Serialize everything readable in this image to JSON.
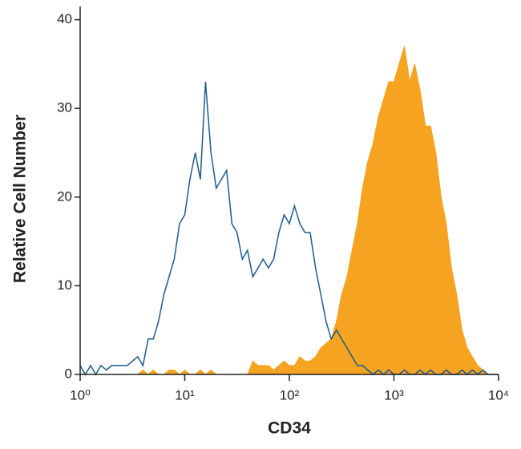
{
  "chart_data": {
    "type": "line",
    "xlabel": "CD34",
    "ylabel": "Relative Cell Number",
    "xscale": "log",
    "xlim": [
      1,
      10000
    ],
    "ylim": [
      0,
      41.5
    ],
    "xticks": [
      {
        "value": 1,
        "label": "10⁰"
      },
      {
        "value": 10,
        "label": "10¹"
      },
      {
        "value": 100,
        "label": "10²"
      },
      {
        "value": 1000,
        "label": "10³"
      },
      {
        "value": 10000,
        "label": "10⁴"
      }
    ],
    "yticks": [
      0,
      10,
      20,
      30,
      40
    ],
    "x": [
      1,
      1.12,
      1.26,
      1.41,
      1.58,
      1.78,
      2,
      2.24,
      2.51,
      2.82,
      3.16,
      3.55,
      3.98,
      4.47,
      5.01,
      5.62,
      6.31,
      7.08,
      7.94,
      8.91,
      10,
      11.2,
      12.6,
      14.1,
      15.8,
      17.8,
      20,
      22.4,
      25.1,
      28.2,
      31.6,
      35.5,
      39.8,
      44.7,
      50.1,
      56.2,
      63.1,
      70.8,
      79.4,
      89.1,
      100,
      112,
      126,
      141,
      158,
      178,
      200,
      224,
      251,
      282,
      316,
      355,
      398,
      447,
      501,
      562,
      631,
      708,
      794,
      891,
      1000,
      1120,
      1260,
      1410,
      1580,
      1780,
      2000,
      2240,
      2510,
      2820,
      3160,
      3550,
      3980,
      4470,
      5010,
      5620,
      6310,
      7080,
      7940,
      8910,
      10000
    ],
    "series": [
      {
        "color": "#f5a320",
        "style": "filled",
        "values": [
          0,
          0,
          0,
          0,
          0,
          0,
          0,
          0,
          0,
          0,
          0,
          0,
          0.5,
          0,
          0.5,
          0,
          0,
          0.5,
          0.5,
          0,
          0.5,
          0,
          0,
          0.5,
          0,
          0.5,
          0,
          0,
          0,
          0,
          0,
          0,
          0,
          1.5,
          1,
          1,
          1,
          0.5,
          1,
          1.5,
          1,
          1,
          2,
          1.5,
          1.5,
          2,
          3,
          3.5,
          4,
          6,
          9,
          11,
          14,
          17,
          21,
          24,
          26,
          29,
          31,
          33,
          33,
          35,
          37,
          33,
          35,
          32,
          28,
          28,
          25,
          20,
          17,
          12,
          9,
          5,
          3,
          2,
          1,
          0.5,
          0,
          0,
          0
        ]
      },
      {
        "color": "#1b5b8e",
        "style": "outline",
        "values": [
          1,
          0,
          1,
          0,
          1,
          0.5,
          1,
          1,
          1,
          1,
          1.5,
          2,
          1,
          4,
          4,
          6,
          9,
          11,
          13,
          17,
          18,
          22,
          25,
          22,
          33,
          25,
          21,
          22,
          23,
          17,
          16,
          13,
          14,
          11,
          12,
          13,
          12,
          13,
          16,
          18,
          17,
          19,
          17,
          16,
          16,
          12,
          9,
          6,
          4,
          5,
          4,
          3,
          2,
          1,
          1,
          0.5,
          0,
          0.5,
          0,
          0.5,
          0,
          0,
          0.5,
          0,
          0,
          0.5,
          0,
          0.5,
          0,
          0,
          0.5,
          0,
          0,
          0.5,
          0,
          0.5,
          0,
          0.5,
          0,
          0,
          0
        ]
      }
    ]
  }
}
